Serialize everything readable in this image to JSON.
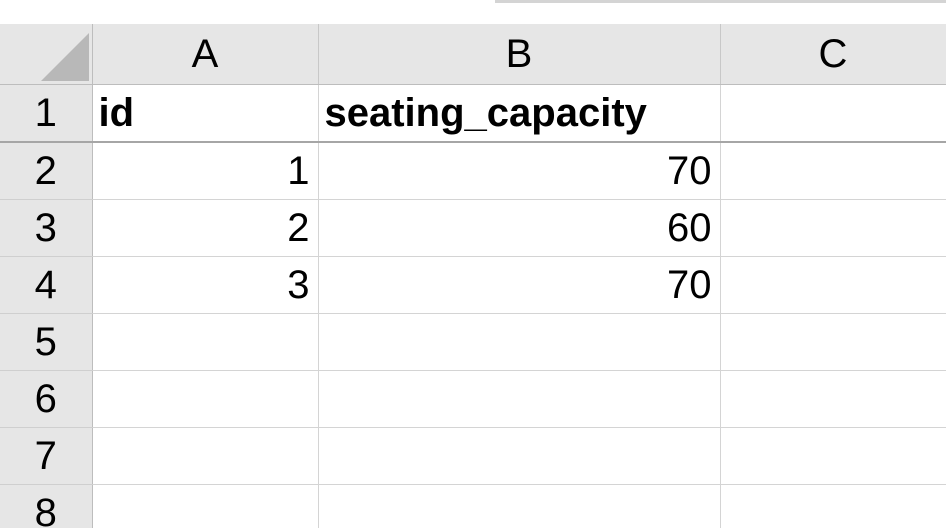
{
  "spreadsheet": {
    "corner_label": "",
    "columns": [
      "A",
      "B",
      "C"
    ],
    "rows": [
      {
        "num": "1",
        "cells": [
          "id",
          "seating_capacity",
          ""
        ]
      },
      {
        "num": "2",
        "cells": [
          "1",
          "70",
          ""
        ]
      },
      {
        "num": "3",
        "cells": [
          "2",
          "60",
          ""
        ]
      },
      {
        "num": "4",
        "cells": [
          "3",
          "70",
          ""
        ]
      },
      {
        "num": "5",
        "cells": [
          "",
          "",
          ""
        ]
      },
      {
        "num": "6",
        "cells": [
          "",
          "",
          ""
        ]
      },
      {
        "num": "7",
        "cells": [
          "",
          "",
          ""
        ]
      },
      {
        "num": "8",
        "cells": [
          "",
          "",
          ""
        ]
      }
    ]
  },
  "colors": {
    "header_bg": "#e6e6e6",
    "grid_line": "#d4d4d4",
    "corner_triangle": "#b8b8b8"
  }
}
